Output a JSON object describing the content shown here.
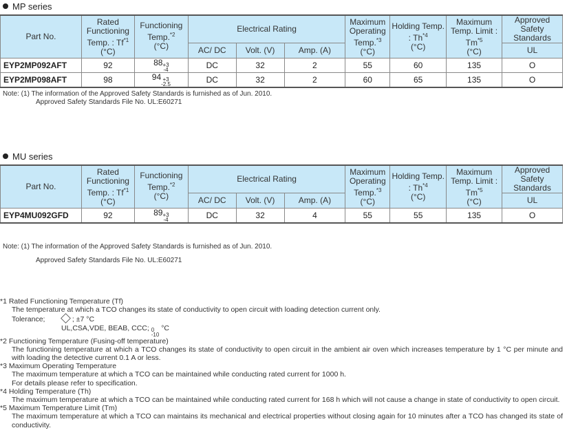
{
  "headers": {
    "part_no": "Part No.",
    "rated": "Rated Functioning Temp. : Tf",
    "rated_mark": "*1",
    "functioning": "Functioning Temp.",
    "functioning_mark": "*2",
    "unit": "(°C)",
    "electrical": "Electrical Rating",
    "acdc": "AC/ DC",
    "volt": "Volt. (V)",
    "amp": "Amp. (A)",
    "max_op": "Maximum Operating Temp.",
    "max_op_mark": "*3",
    "holding": "Holding Temp. : Th",
    "holding_mark": "*4",
    "max_limit": "Maximum Temp. Limit : Tm",
    "max_limit_mark": "*5",
    "approved": "Approved Safety Standards",
    "ul": "UL"
  },
  "mp": {
    "title": "MP series",
    "rows": [
      {
        "part": "EYP2MP092AFT",
        "tf": "92",
        "ft": "88",
        "ft_plus": "+3",
        "ft_minus": "-4",
        "acdc": "DC",
        "volt": "32",
        "amp": "2",
        "maxop": "55",
        "th": "60",
        "tm": "135",
        "ul": "O"
      },
      {
        "part": "EYP2MP098AFT",
        "tf": "98",
        "ft": "94",
        "ft_plus": "+3",
        "ft_minus": "-2.5",
        "acdc": "DC",
        "volt": "32",
        "amp": "2",
        "maxop": "60",
        "th": "65",
        "tm": "135",
        "ul": "O"
      }
    ],
    "note1": "Note: (1) The information of the Approved Safety Standards is furnished as of Jun. 2010.",
    "note2": "Approved Safety Standards File No. UL:E60271"
  },
  "mu": {
    "title": "MU series",
    "rows": [
      {
        "part": "EYP4MU092GFD",
        "tf": "92",
        "ft": "89",
        "ft_plus": "+3",
        "ft_minus": "-4",
        "acdc": "DC",
        "volt": "32",
        "amp": "4",
        "maxop": "55",
        "th": "55",
        "tm": "135",
        "ul": "O"
      }
    ],
    "note1": "Note: (1) The information of the Approved Safety Standards is furnished as of Jun. 2010.",
    "note2": "Approved Safety Standards File No. UL:E60271"
  },
  "footnotes": {
    "n1_title": "*1 Rated Functioning Temperature (Tf)",
    "n1_text": "The temperature at which a TCO changes its state of conductivity to open circuit with loading detection current only.",
    "n1_tol_label": "Tolerance;",
    "n1_tol1": "; ±7 °C",
    "n1_tol2": "UL,CSA,VDE, BEAB, CCC;",
    "n1_tol2_plus": "0",
    "n1_tol2_minus": "-10",
    "n1_tol2_unit": "°C",
    "n2_title": "*2 Functioning Temperature (Fusing-off temperature)",
    "n2_text": "The functioning temperature at which a TCO changes its state of conductivity to open circuit in the ambient air oven which increases temperature by 1 °C per minute and with loading the detective current 0.1 A or less.",
    "n3_title": "*3 Maximum Operating Temperature",
    "n3_text": "The maximum temperature at which a TCO can be maintained while conducting rated current for 1000 h.",
    "n3_text2": "For details please refer to specification.",
    "n4_title": "*4 Holding Temperature (Th)",
    "n4_text": "The maximum temperature at which a TCO can be maintained while conducting rated current for 168 h which will not cause a change in state of conductivity to open circuit.",
    "n5_title": "*5 Maximum Temperature Limit (Tm)",
    "n5_text": "The maximum temperature at which a TCO can maintains its mechanical and electrical properties without closing again for 10 minutes after a TCO has changed its state of conductivity."
  }
}
